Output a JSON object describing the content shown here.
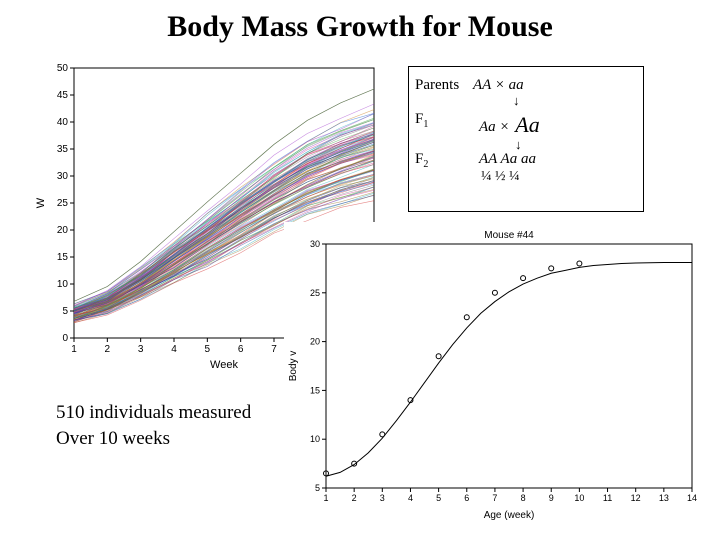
{
  "title": {
    "text": "Body Mass Growth for Mouse",
    "fontsize": 30,
    "color": "#000000"
  },
  "caption": {
    "line1": "510 individuals measured",
    "line2": "Over 10 weeks"
  },
  "genetics": {
    "rows": [
      {
        "label": "Parents",
        "genotypes": "AA ×  aa",
        "ratio": ""
      },
      {
        "label": "F1",
        "genotypes": "Aa ×",
        "big": "Aa",
        "ratio": ""
      },
      {
        "label": "F2",
        "genotypes": "AA   Aa   aa",
        "ratio": "¼    ½    ¼"
      }
    ]
  },
  "left_chart": {
    "type": "line-spaghetti",
    "title": "",
    "xlabel": "Week",
    "ylabel": "W",
    "xlim": [
      1,
      10
    ],
    "xtick_step": 1,
    "ylim": [
      0,
      50
    ],
    "ytick_step": 5,
    "label_fontsize": 11,
    "tick_fontsize": 10,
    "axis_color": "#000000",
    "grid": false,
    "background_color": "#ffffff",
    "line_width": 0.6,
    "line_opacity": 0.55,
    "colors": [
      "#1057c8",
      "#d12a2a",
      "#2aa02a",
      "#9b2fc8",
      "#1aa6b8",
      "#c97a14",
      "#cc3290",
      "#6b6b6b",
      "#916b20",
      "#30308f"
    ],
    "n_series": 120,
    "base_curve": [
      4.5,
      6.5,
      10,
      14,
      18,
      22,
      26,
      29.5,
      32,
      34
    ],
    "spread": [
      1.2,
      1.6,
      2.2,
      3.0,
      3.8,
      4.5,
      5.2,
      5.7,
      6.1,
      6.4
    ],
    "top_band": 46
  },
  "right_chart": {
    "type": "scatter-with-curve",
    "title": "Mouse #44",
    "title_fontsize": 10,
    "xlabel": "Age (week)",
    "ylabel": "Body v",
    "xlim": [
      1,
      14
    ],
    "xtick_step": 1,
    "ylim": [
      5,
      30
    ],
    "ytick_step": 5,
    "label_fontsize": 10,
    "tick_fontsize": 9,
    "axis_color": "#000000",
    "grid": false,
    "background_color": "#ffffff",
    "marker": "circle",
    "marker_size": 5,
    "marker_color": "#000000",
    "marker_fill": "none",
    "line_color": "#000000",
    "line_width": 1,
    "points_x": [
      1,
      2,
      3,
      4,
      5,
      6,
      7,
      8,
      9,
      10
    ],
    "points_y": [
      6.5,
      7.5,
      10.5,
      14,
      18.5,
      22.5,
      25,
      26.5,
      27.5,
      28
    ],
    "curve_x": [
      1,
      1.5,
      2,
      2.5,
      3,
      3.5,
      4,
      4.5,
      5,
      5.5,
      6,
      6.5,
      7,
      7.5,
      8,
      8.5,
      9,
      9.5,
      10,
      10.5,
      11,
      11.5,
      12,
      12.5,
      13,
      13.5,
      14
    ],
    "curve_y": [
      6.2,
      6.6,
      7.4,
      8.6,
      10.1,
      11.9,
      13.8,
      15.8,
      17.8,
      19.7,
      21.4,
      22.9,
      24.1,
      25.1,
      25.9,
      26.5,
      27.0,
      27.3,
      27.6,
      27.8,
      27.9,
      28.0,
      28.05,
      28.08,
      28.1,
      28.1,
      28.1
    ]
  }
}
